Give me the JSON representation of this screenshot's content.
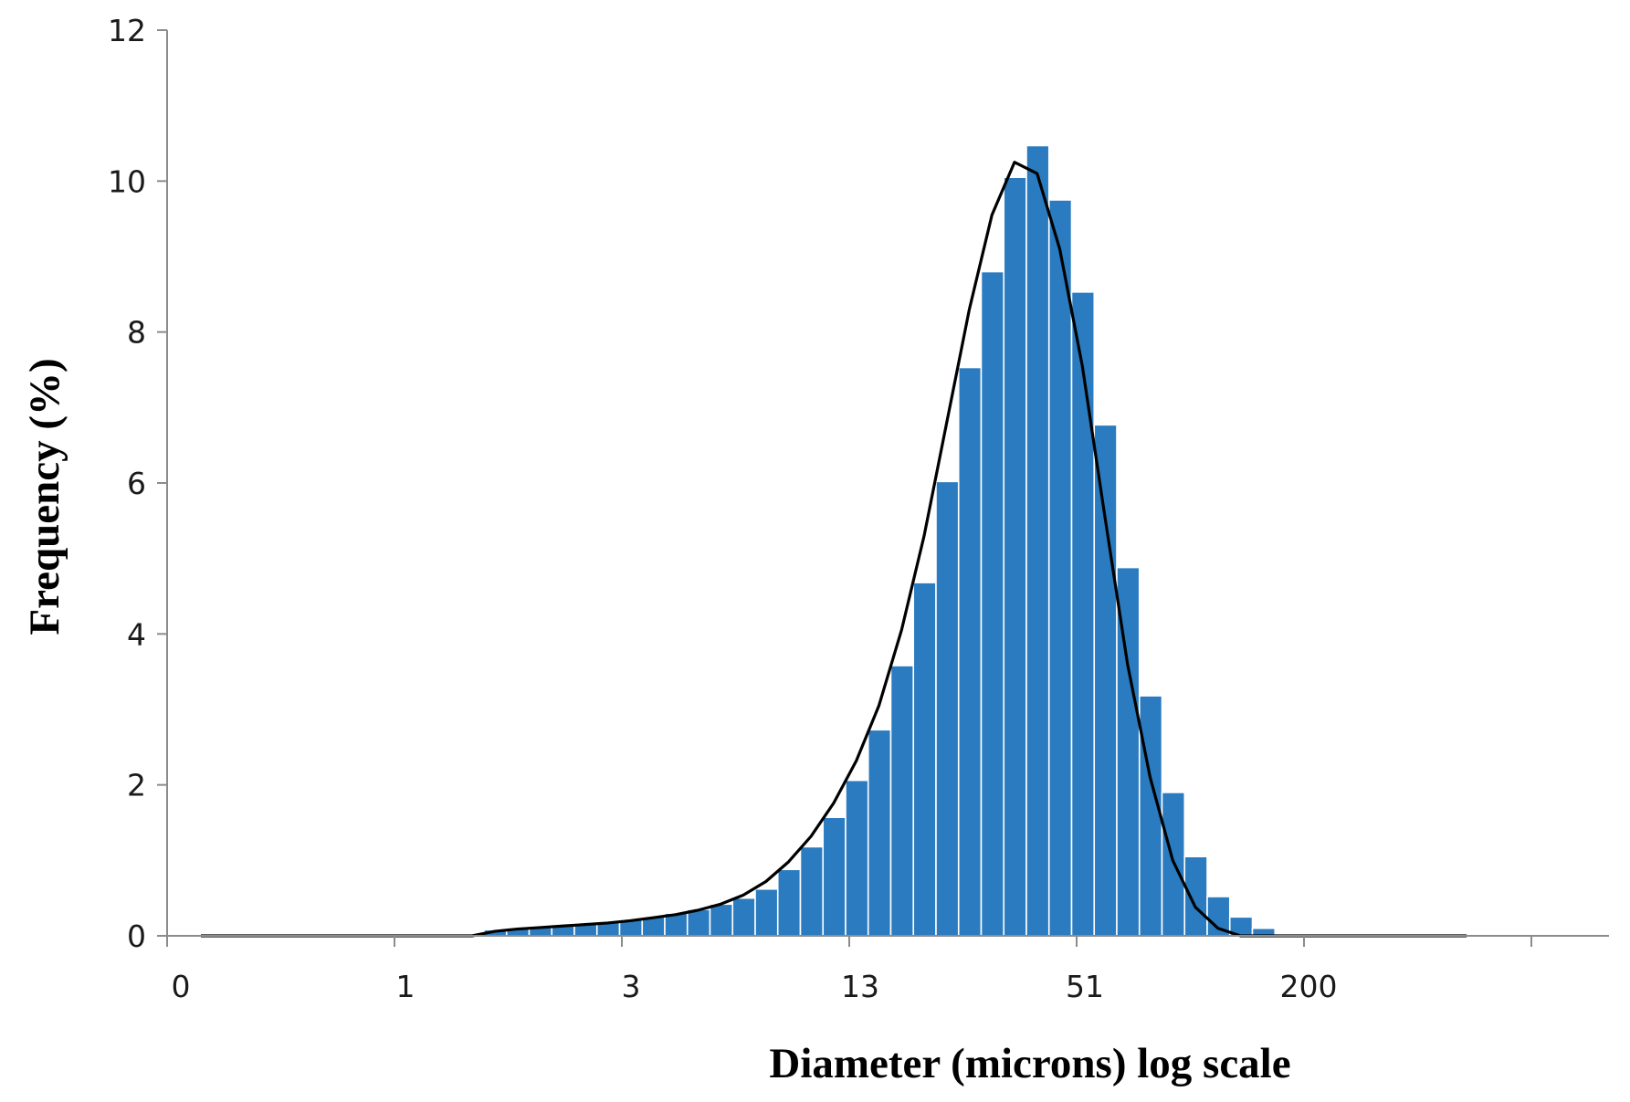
{
  "chart_data": {
    "type": "bar",
    "title": "",
    "xlabel": "Diameter (microns) log scale",
    "ylabel": "Frequency (%)",
    "ylim": [
      0,
      12
    ],
    "y_ticks": [
      "0",
      "2",
      "4",
      "6",
      "8",
      "10",
      "12"
    ],
    "x_tick_labels": [
      "0",
      "1",
      "3",
      "13",
      "51",
      "200"
    ],
    "x_scale": "log",
    "grid": false,
    "legend": "none",
    "colors": {
      "bars": "#2a7bbf",
      "bar_edge": "#ffffff",
      "curve": "#000000",
      "axis": "#8c8c8c"
    },
    "series": [
      {
        "type": "bar",
        "values": [
          0.08,
          0.1,
          0.12,
          0.14,
          0.16,
          0.18,
          0.21,
          0.25,
          0.3,
          0.35,
          0.42,
          0.5,
          0.62,
          0.88,
          1.18,
          1.57,
          2.06,
          2.73,
          3.58,
          4.68,
          6.02,
          7.53,
          8.8,
          10.05,
          10.47,
          9.75,
          8.53,
          6.77,
          4.88,
          3.18,
          1.9,
          1.05,
          0.52,
          0.25,
          0.1
        ]
      },
      {
        "type": "line",
        "values": [
          0,
          0,
          0,
          0,
          0,
          0,
          0,
          0,
          0,
          0,
          0,
          0,
          0,
          0.06,
          0.09,
          0.11,
          0.13,
          0.15,
          0.17,
          0.2,
          0.24,
          0.28,
          0.34,
          0.42,
          0.54,
          0.72,
          0.98,
          1.32,
          1.76,
          2.32,
          3.05,
          4.05,
          5.3,
          6.8,
          8.3,
          9.55,
          10.25,
          10.1,
          9.1,
          7.55,
          5.55,
          3.6,
          2.1,
          1.0,
          0.38,
          0.1,
          0,
          0,
          0,
          0,
          0,
          0,
          0,
          0,
          0,
          0,
          0
        ]
      }
    ]
  }
}
